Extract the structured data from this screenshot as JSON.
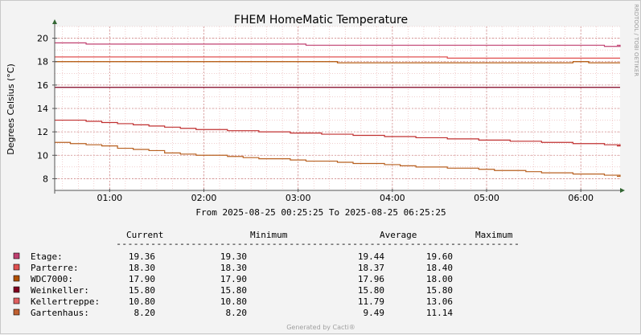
{
  "chart_data": {
    "type": "line",
    "title": "FHEM HomeMatic Temperature",
    "ylabel": "Degrees Celsius (°C)",
    "watermark": "RRDTOOL / TOBI OETIKER",
    "ylim": [
      7,
      21
    ],
    "y_ticks": [
      8,
      10,
      12,
      14,
      16,
      18,
      20
    ],
    "x_ticks": [
      "01:00",
      "02:00",
      "03:00",
      "04:00",
      "05:00",
      "06:00"
    ],
    "time_range_label": "From 2025-08-25 00:25:25 To 2025-08-25 06:25:25",
    "grid": true,
    "x": [
      "00:25",
      "00:35",
      "00:45",
      "00:55",
      "01:05",
      "01:15",
      "01:25",
      "01:35",
      "01:45",
      "01:55",
      "02:05",
      "02:15",
      "02:25",
      "02:35",
      "02:45",
      "02:55",
      "03:05",
      "03:15",
      "03:25",
      "03:35",
      "03:45",
      "03:55",
      "04:05",
      "04:15",
      "04:25",
      "04:35",
      "04:45",
      "04:55",
      "05:05",
      "05:15",
      "05:25",
      "05:35",
      "05:45",
      "05:55",
      "06:05",
      "06:15",
      "06:25"
    ],
    "series": [
      {
        "name": "Etage",
        "color": "#c04070",
        "values": [
          19.6,
          19.6,
          19.5,
          19.5,
          19.5,
          19.5,
          19.5,
          19.5,
          19.5,
          19.5,
          19.5,
          19.5,
          19.5,
          19.5,
          19.5,
          19.5,
          19.4,
          19.4,
          19.4,
          19.4,
          19.4,
          19.4,
          19.4,
          19.4,
          19.4,
          19.4,
          19.4,
          19.4,
          19.4,
          19.4,
          19.4,
          19.4,
          19.4,
          19.4,
          19.4,
          19.3,
          19.4
        ]
      },
      {
        "name": "Parterre",
        "color": "#e05050",
        "values": [
          18.4,
          18.4,
          18.4,
          18.4,
          18.4,
          18.4,
          18.4,
          18.4,
          18.4,
          18.4,
          18.4,
          18.4,
          18.4,
          18.4,
          18.4,
          18.4,
          18.4,
          18.4,
          18.4,
          18.4,
          18.4,
          18.4,
          18.4,
          18.4,
          18.4,
          18.3,
          18.3,
          18.3,
          18.3,
          18.3,
          18.3,
          18.3,
          18.3,
          18.3,
          18.3,
          18.3,
          18.3
        ]
      },
      {
        "name": "WDC7000:",
        "color": "#b05000",
        "values": [
          18.0,
          18.0,
          18.0,
          18.0,
          18.0,
          18.0,
          18.0,
          18.0,
          18.0,
          18.0,
          18.0,
          18.0,
          18.0,
          18.0,
          18.0,
          18.0,
          18.0,
          18.0,
          17.9,
          17.9,
          17.9,
          17.9,
          17.9,
          17.9,
          17.9,
          17.9,
          17.9,
          17.9,
          17.9,
          17.9,
          17.9,
          17.9,
          17.9,
          18.0,
          17.9,
          17.9,
          17.9
        ]
      },
      {
        "name": "Weinkeller:",
        "color": "#800020",
        "values": [
          15.8,
          15.8,
          15.8,
          15.8,
          15.8,
          15.8,
          15.8,
          15.8,
          15.8,
          15.8,
          15.8,
          15.8,
          15.8,
          15.8,
          15.8,
          15.8,
          15.8,
          15.8,
          15.8,
          15.8,
          15.8,
          15.8,
          15.8,
          15.8,
          15.8,
          15.8,
          15.8,
          15.8,
          15.8,
          15.8,
          15.8,
          15.8,
          15.8,
          15.8,
          15.8,
          15.8,
          15.8
        ]
      },
      {
        "name": "Kellertreppe:",
        "color": "#c03030",
        "values": [
          13.0,
          13.0,
          12.9,
          12.8,
          12.7,
          12.6,
          12.5,
          12.4,
          12.3,
          12.2,
          12.2,
          12.1,
          12.1,
          12.0,
          12.0,
          11.9,
          11.9,
          11.8,
          11.8,
          11.7,
          11.7,
          11.6,
          11.6,
          11.5,
          11.5,
          11.4,
          11.4,
          11.3,
          11.3,
          11.2,
          11.2,
          11.1,
          11.1,
          11.0,
          11.0,
          10.9,
          10.8
        ]
      },
      {
        "name": "Gartenhaus:",
        "color": "#b86020",
        "values": [
          11.1,
          11.0,
          10.9,
          10.8,
          10.6,
          10.5,
          10.4,
          10.2,
          10.1,
          10.0,
          10.0,
          9.9,
          9.8,
          9.7,
          9.7,
          9.6,
          9.5,
          9.5,
          9.4,
          9.3,
          9.3,
          9.2,
          9.1,
          9.0,
          9.0,
          8.9,
          8.9,
          8.8,
          8.7,
          8.7,
          8.6,
          8.5,
          8.5,
          8.4,
          8.4,
          8.3,
          8.2
        ]
      }
    ]
  },
  "legend": {
    "headers": {
      "current": "Current",
      "minimum": "Minimum",
      "average": "Average",
      "maximum": "Maximum"
    },
    "rule": "----------------------------------------------------------------------",
    "rows": [
      {
        "label": "Etage:",
        "color": "#c04070",
        "current": "19.36",
        "minimum": "19.30",
        "average": "19.44",
        "maximum": "19.60"
      },
      {
        "label": "Parterre:",
        "color": "#e05050",
        "current": "18.30",
        "minimum": "18.30",
        "average": "18.37",
        "maximum": "18.40"
      },
      {
        "label": "WDC7000:",
        "color": "#b05000",
        "current": "17.90",
        "minimum": "17.90",
        "average": "17.96",
        "maximum": "18.00"
      },
      {
        "label": "Weinkeller:",
        "color": "#800020",
        "current": "15.80",
        "minimum": "15.80",
        "average": "15.80",
        "maximum": "15.80"
      },
      {
        "label": "Kellertreppe:",
        "color": "#e06060",
        "current": "10.80",
        "minimum": "10.80",
        "average": "11.79",
        "maximum": "13.06"
      },
      {
        "label": "Gartenhaus:",
        "color": "#c06030",
        "current": "8.20",
        "minimum": "8.20",
        "average": "9.49",
        "maximum": "11.14"
      }
    ]
  },
  "footer": {
    "generated": "Generated by Cacti®"
  }
}
